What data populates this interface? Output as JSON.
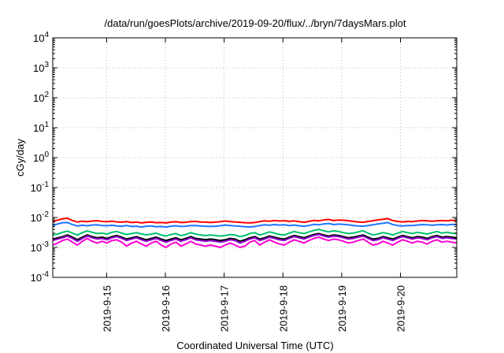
{
  "chart_data": {
    "type": "line",
    "title": "/data/run/goesPlots/archive/2019-09-20/flux/../bryn/7daysMars.plot",
    "xlabel": "Coordinated Universal Time (UTC)",
    "ylabel": "cGy/day",
    "yscale": "log",
    "ylim": [
      0.0001,
      10000
    ],
    "xlim": [
      "2019-09-14 02:00",
      "2019-09-20 23:00"
    ],
    "y_ticks": [
      {
        "value": 0.0001,
        "base": "10",
        "exp": "-4"
      },
      {
        "value": 0.001,
        "base": "10",
        "exp": "-3"
      },
      {
        "value": 0.01,
        "base": "10",
        "exp": "-2"
      },
      {
        "value": 0.1,
        "base": "10",
        "exp": "-1"
      },
      {
        "value": 1,
        "base": "10",
        "exp": "0"
      },
      {
        "value": 10,
        "base": "10",
        "exp": "1"
      },
      {
        "value": 100,
        "base": "10",
        "exp": "2"
      },
      {
        "value": 1000,
        "base": "10",
        "exp": "3"
      },
      {
        "value": 10000,
        "base": "10",
        "exp": "4"
      }
    ],
    "x_ticks": [
      "2019-9-15",
      "2019-9-16",
      "2019-9-17",
      "2019-9-18",
      "2019-9-19",
      "2019-9-20"
    ],
    "grid": true,
    "series": [
      {
        "color": "#ff0000",
        "values": [
          0.0073,
          0.0082,
          0.0091,
          0.0094,
          0.0079,
          0.0071,
          0.0075,
          0.0072,
          0.0076,
          0.0078,
          0.0074,
          0.0072,
          0.0075,
          0.0071,
          0.007,
          0.0073,
          0.0068,
          0.007,
          0.0066,
          0.0069,
          0.0071,
          0.0067,
          0.0068,
          0.0066,
          0.007,
          0.0072,
          0.0068,
          0.0069,
          0.0073,
          0.0074,
          0.0071,
          0.007,
          0.0068,
          0.007,
          0.0072,
          0.0076,
          0.0073,
          0.0071,
          0.0069,
          0.0067,
          0.0066,
          0.0068,
          0.0073,
          0.0077,
          0.0075,
          0.0079,
          0.0076,
          0.0078,
          0.0074,
          0.0077,
          0.0072,
          0.0069,
          0.0074,
          0.008,
          0.0077,
          0.0083,
          0.0086,
          0.0079,
          0.0082,
          0.0081,
          0.0078,
          0.0074,
          0.0071,
          0.0069,
          0.0074,
          0.0078,
          0.0083,
          0.0087,
          0.0092,
          0.0079,
          0.0074,
          0.0071,
          0.0074,
          0.0073,
          0.0076,
          0.0079,
          0.0077,
          0.0075,
          0.0077,
          0.0079,
          0.0077,
          0.0081,
          0.0078
        ]
      },
      {
        "color": "#1f77ff",
        "values": [
          0.0054,
          0.0061,
          0.0067,
          0.0068,
          0.0058,
          0.0052,
          0.0055,
          0.0053,
          0.0056,
          0.0057,
          0.0054,
          0.0053,
          0.0055,
          0.0052,
          0.0051,
          0.0054,
          0.005,
          0.0051,
          0.0048,
          0.0051,
          0.0052,
          0.0049,
          0.005,
          0.0048,
          0.0051,
          0.0053,
          0.005,
          0.0051,
          0.0054,
          0.0054,
          0.0052,
          0.0051,
          0.005,
          0.0051,
          0.0053,
          0.0056,
          0.0054,
          0.0052,
          0.0051,
          0.0049,
          0.0048,
          0.005,
          0.0054,
          0.0057,
          0.0055,
          0.0058,
          0.0056,
          0.0057,
          0.0054,
          0.0056,
          0.0053,
          0.0051,
          0.0054,
          0.0059,
          0.0057,
          0.0061,
          0.0063,
          0.0058,
          0.006,
          0.0059,
          0.0057,
          0.0054,
          0.0052,
          0.0051,
          0.0054,
          0.0057,
          0.0061,
          0.0064,
          0.0068,
          0.0058,
          0.0054,
          0.0052,
          0.0054,
          0.0054,
          0.0056,
          0.0058,
          0.0057,
          0.0055,
          0.0057,
          0.0058,
          0.0056,
          0.0059,
          0.0057
        ]
      },
      {
        "color": "#00c070",
        "values": [
          0.0026,
          0.0028,
          0.0032,
          0.0035,
          0.003,
          0.0026,
          0.0031,
          0.0036,
          0.0032,
          0.0029,
          0.003,
          0.0028,
          0.0032,
          0.0034,
          0.003,
          0.0027,
          0.0029,
          0.0031,
          0.0028,
          0.0026,
          0.0028,
          0.003,
          0.0026,
          0.0024,
          0.0027,
          0.0029,
          0.0025,
          0.0027,
          0.0031,
          0.0028,
          0.0026,
          0.0025,
          0.0026,
          0.0025,
          0.0024,
          0.0025,
          0.0027,
          0.0026,
          0.0023,
          0.0025,
          0.0029,
          0.0031,
          0.0026,
          0.0029,
          0.0033,
          0.003,
          0.0027,
          0.0026,
          0.003,
          0.0034,
          0.0031,
          0.0029,
          0.0033,
          0.0037,
          0.004,
          0.0036,
          0.0033,
          0.0036,
          0.0034,
          0.0031,
          0.0029,
          0.003,
          0.0033,
          0.0036,
          0.003,
          0.0026,
          0.0028,
          0.0031,
          0.0029,
          0.0026,
          0.003,
          0.0034,
          0.0031,
          0.0029,
          0.0032,
          0.003,
          0.0028,
          0.0031,
          0.0034,
          0.003,
          0.0032,
          0.003,
          0.0029
        ]
      },
      {
        "color": "#000000",
        "values": [
          0.0019,
          0.0021,
          0.0023,
          0.0026,
          0.0022,
          0.0018,
          0.0022,
          0.0026,
          0.0023,
          0.0021,
          0.0022,
          0.002,
          0.0023,
          0.0025,
          0.0022,
          0.0019,
          0.0021,
          0.0023,
          0.002,
          0.0018,
          0.002,
          0.0022,
          0.0019,
          0.0017,
          0.0019,
          0.0021,
          0.0018,
          0.002,
          0.0023,
          0.002,
          0.0019,
          0.0018,
          0.0019,
          0.0018,
          0.0017,
          0.0018,
          0.002,
          0.0019,
          0.0016,
          0.0018,
          0.0021,
          0.0023,
          0.0019,
          0.0021,
          0.0024,
          0.0022,
          0.002,
          0.0019,
          0.0022,
          0.0025,
          0.0023,
          0.0021,
          0.0024,
          0.0027,
          0.0029,
          0.0026,
          0.0024,
          0.0026,
          0.0025,
          0.0023,
          0.0021,
          0.0022,
          0.0024,
          0.0026,
          0.0022,
          0.0019,
          0.002,
          0.0023,
          0.0021,
          0.0019,
          0.0022,
          0.0025,
          0.0023,
          0.0021,
          0.0023,
          0.0022,
          0.002,
          0.0023,
          0.0025,
          0.0022,
          0.0023,
          0.0022,
          0.0021
        ]
      },
      {
        "color": "#9400d3",
        "values": [
          0.0017,
          0.0019,
          0.0021,
          0.0024,
          0.002,
          0.0016,
          0.002,
          0.0024,
          0.0021,
          0.0019,
          0.002,
          0.0018,
          0.0021,
          0.0023,
          0.002,
          0.0017,
          0.0019,
          0.0021,
          0.0018,
          0.0016,
          0.0018,
          0.002,
          0.0017,
          0.0015,
          0.0017,
          0.0019,
          0.0016,
          0.0018,
          0.0021,
          0.0018,
          0.0017,
          0.0016,
          0.0017,
          0.0016,
          0.0015,
          0.0016,
          0.0018,
          0.0017,
          0.0014,
          0.0016,
          0.0019,
          0.0021,
          0.0017,
          0.0019,
          0.0022,
          0.002,
          0.0018,
          0.0017,
          0.002,
          0.0023,
          0.0021,
          0.0019,
          0.0022,
          0.0025,
          0.0027,
          0.0024,
          0.0022,
          0.0024,
          0.0023,
          0.0021,
          0.0019,
          0.002,
          0.0022,
          0.0024,
          0.002,
          0.0017,
          0.0018,
          0.0021,
          0.0019,
          0.0017,
          0.002,
          0.0023,
          0.0021,
          0.0019,
          0.0021,
          0.002,
          0.0018,
          0.0021,
          0.0023,
          0.002,
          0.0021,
          0.002,
          0.0019
        ]
      },
      {
        "color": "#ff00d0",
        "values": [
          0.0012,
          0.0014,
          0.0017,
          0.0019,
          0.0015,
          0.0012,
          0.0016,
          0.002,
          0.0016,
          0.0014,
          0.0016,
          0.0014,
          0.0017,
          0.0018,
          0.0015,
          0.0011,
          0.0014,
          0.0016,
          0.0013,
          0.0011,
          0.0014,
          0.0016,
          0.0012,
          0.001,
          0.0013,
          0.0015,
          0.0011,
          0.0013,
          0.0016,
          0.0013,
          0.0012,
          0.0011,
          0.0012,
          0.0011,
          0.001,
          0.0012,
          0.0014,
          0.0012,
          0.001,
          0.0011,
          0.0015,
          0.0017,
          0.0012,
          0.0015,
          0.0018,
          0.0015,
          0.0013,
          0.0012,
          0.0015,
          0.0018,
          0.0016,
          0.0014,
          0.0017,
          0.002,
          0.0022,
          0.0019,
          0.0017,
          0.0019,
          0.0018,
          0.0016,
          0.0014,
          0.0015,
          0.0017,
          0.0019,
          0.0015,
          0.0012,
          0.0013,
          0.0016,
          0.0014,
          0.0012,
          0.0015,
          0.0018,
          0.0016,
          0.0014,
          0.0016,
          0.0015,
          0.0013,
          0.0016,
          0.0018,
          0.0015,
          0.0016,
          0.0015,
          0.0014
        ]
      }
    ]
  }
}
